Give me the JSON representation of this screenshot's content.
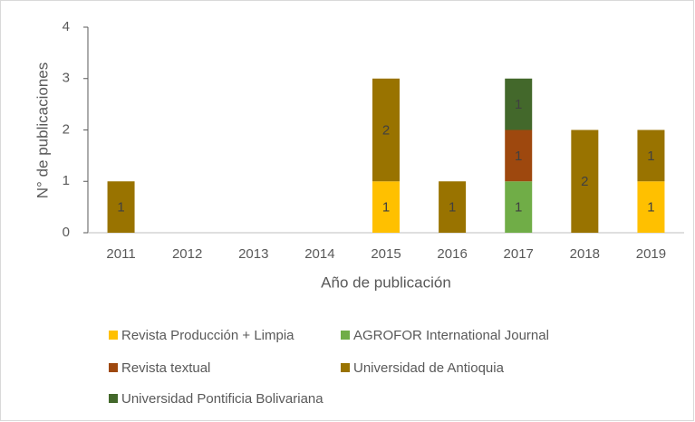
{
  "chart_data": {
    "type": "stacked_bar",
    "xlabel": "Año de publicación",
    "ylabel": "N° de publicaciones",
    "categories": [
      "2011",
      "2012",
      "2013",
      "2014",
      "2015",
      "2016",
      "2017",
      "2018",
      "2019"
    ],
    "series": [
      {
        "name": "Revista Producción + Limpia",
        "color": "#ffc000",
        "values": [
          null,
          null,
          null,
          null,
          1,
          null,
          null,
          null,
          1
        ]
      },
      {
        "name": "AGROFOR International Journal",
        "color": "#70ad47",
        "values": [
          null,
          null,
          null,
          null,
          null,
          null,
          1,
          null,
          null
        ]
      },
      {
        "name": "Revista textual",
        "color": "#9e480e",
        "values": [
          null,
          null,
          null,
          null,
          null,
          null,
          1,
          null,
          null
        ]
      },
      {
        "name": "Universidad de Antioquia",
        "color": "#997300",
        "values": [
          1,
          null,
          null,
          null,
          2,
          1,
          null,
          2,
          1
        ]
      },
      {
        "name": "Universidad Pontificia Bolivariana",
        "color": "#43682b",
        "values": [
          null,
          null,
          null,
          null,
          null,
          null,
          1,
          null,
          null
        ]
      }
    ],
    "ylim": [
      0,
      4
    ],
    "yticks": [
      0,
      1,
      2,
      3,
      4
    ],
    "grid": false
  }
}
